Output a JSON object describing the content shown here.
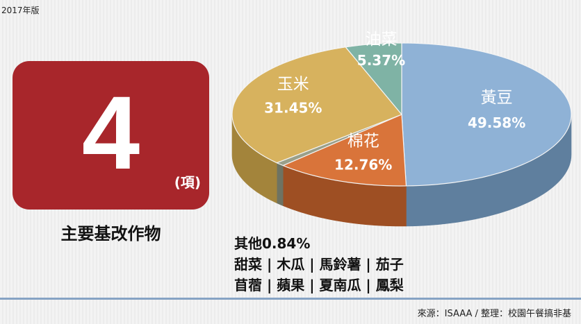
{
  "edition": "2017年版",
  "count_box": {
    "number": "4",
    "unit": "(項)",
    "caption": "主要基改作物"
  },
  "chart_data": {
    "type": "pie",
    "title": "",
    "slices": [
      {
        "label": "黃豆",
        "value": 49.58,
        "value_text": "49.58%",
        "color": "#8fb2d6",
        "side_color": "#5f7f9e"
      },
      {
        "label": "棉花",
        "value": 12.76,
        "value_text": "12.76%",
        "color": "#d9743a",
        "side_color": "#9e4f23"
      },
      {
        "label": "其他",
        "value": 0.84,
        "value_text": "0.84%",
        "color": "#9aa08a",
        "side_color": "#6e7362"
      },
      {
        "label": "玉米",
        "value": 31.45,
        "value_text": "31.45%",
        "color": "#d7b25e",
        "side_color": "#a3843b"
      },
      {
        "label": "油菜",
        "value": 5.37,
        "value_text": "5.37%",
        "color": "#7fb3a5",
        "side_color": "#567f73"
      }
    ]
  },
  "others_note": {
    "line1": "其他0.84%",
    "line2": "甜菜 | 木瓜 | 馬鈴薯 | 茄子",
    "line3": "苜蓿 | 蘋果 | 夏南瓜 | 鳳梨"
  },
  "source": "來源：ISAAA / 整理：校園午餐搞非基"
}
